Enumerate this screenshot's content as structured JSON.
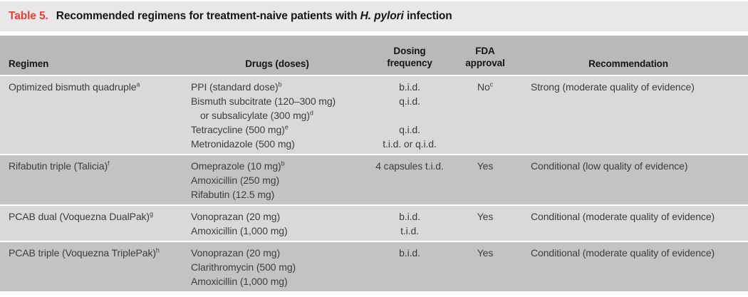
{
  "title": {
    "label": "Table 5.",
    "prefix": "Recommended regimens for treatment-naive patients with ",
    "italic": "H. pylori",
    "suffix": " infection"
  },
  "header": {
    "regimen": "Regimen",
    "drugs": "Drugs (doses)",
    "dosing_line1": "Dosing",
    "dosing_line2": "frequency",
    "fda_line1": "FDA",
    "fda_line2": "approval",
    "recommendation": "Recommendation"
  },
  "colors": {
    "title_band": "#e8e8e8",
    "header_band": "#b9b9b9",
    "row_light": "#d9d9d9",
    "row_dark": "#c3c3c3",
    "accent_red": "#ea3e33",
    "body_text": "#3d3d3d",
    "heading_text": "#141414"
  },
  "rows": [
    {
      "shade": "light",
      "regimen": "Optimized bismuth quadruple",
      "regimen_sup": "a",
      "drugs": [
        {
          "text": "PPI (standard dose)",
          "sup": "b",
          "freq": "b.i.d."
        },
        {
          "text": "Bismuth subcitrate (120–300 mg)",
          "sup": "",
          "freq": "q.i.d."
        },
        {
          "text": "or subsalicylate (300 mg)",
          "sup": "d",
          "freq": "",
          "indent": true
        },
        {
          "text": "Tetracycline (500 mg)",
          "sup": "e",
          "freq": "q.i.d."
        },
        {
          "text": "Metronidazole (500 mg)",
          "sup": "",
          "freq": "t.i.d. or q.i.d."
        }
      ],
      "fda": "No",
      "fda_sup": "c",
      "recommendation": "Strong (moderate quality of evidence)"
    },
    {
      "shade": "dark",
      "regimen": "Rifabutin triple (Talicia)",
      "regimen_sup": "f",
      "drugs": [
        {
          "text": "Omeprazole (10 mg)",
          "sup": "b",
          "freq": "4 capsules t.i.d."
        },
        {
          "text": "Amoxicillin (250 mg)",
          "sup": "",
          "freq": ""
        },
        {
          "text": "Rifabutin (12.5 mg)",
          "sup": "",
          "freq": ""
        }
      ],
      "fda": "Yes",
      "fda_sup": "",
      "recommendation": "Conditional (low quality of evidence)"
    },
    {
      "shade": "light",
      "regimen": "PCAB dual (Voquezna DualPak)",
      "regimen_sup": "g",
      "drugs": [
        {
          "text": "Vonoprazan (20 mg)",
          "sup": "",
          "freq": "b.i.d."
        },
        {
          "text": "Amoxicillin (1,000 mg)",
          "sup": "",
          "freq": "t.i.d."
        }
      ],
      "fda": "Yes",
      "fda_sup": "",
      "recommendation": "Conditional (moderate quality of evidence)"
    },
    {
      "shade": "dark",
      "regimen": "PCAB triple (Voquezna TriplePak)",
      "regimen_sup": "h",
      "drugs": [
        {
          "text": "Vonoprazan (20 mg)",
          "sup": "",
          "freq": "b.i.d."
        },
        {
          "text": "Clarithromycin (500 mg)",
          "sup": "",
          "freq": ""
        },
        {
          "text": "Amoxicillin (1,000 mg)",
          "sup": "",
          "freq": ""
        }
      ],
      "fda": "Yes",
      "fda_sup": "",
      "recommendation": "Conditional (moderate quality of evidence)"
    }
  ]
}
